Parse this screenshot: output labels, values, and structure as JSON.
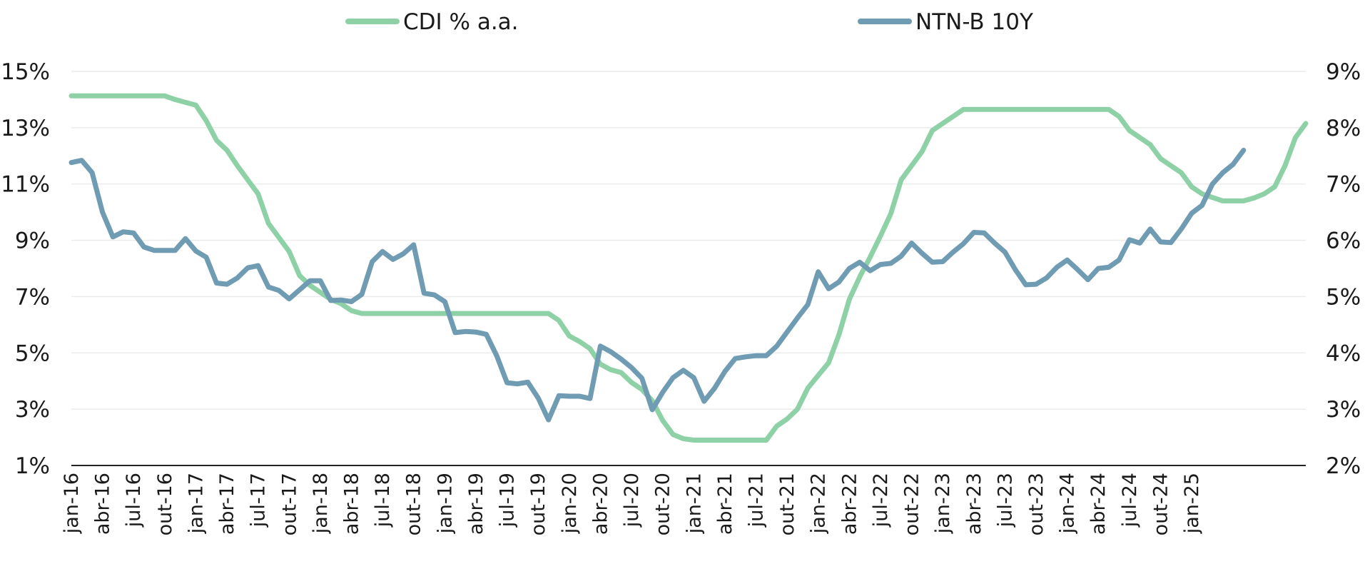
{
  "chart_data": {
    "type": "line",
    "title": "",
    "legend_position": "top",
    "grid": true,
    "colors": {
      "CDI": "#8fd1a6",
      "NTNB": "#6f9bb3"
    },
    "left_axis": {
      "ylim": [
        1,
        15
      ],
      "ticks": [
        "15%",
        "13%",
        "11%",
        "9%",
        "7%",
        "5%",
        "3%",
        "1%"
      ]
    },
    "right_axis": {
      "ylim": [
        2,
        9
      ],
      "ticks": [
        "9%",
        "8%",
        "7%",
        "6%",
        "5%",
        "4%",
        "3%",
        "2%"
      ]
    },
    "x_tick_labels": [
      "jan-16",
      "abr-16",
      "jul-16",
      "out-16",
      "jan-17",
      "abr-17",
      "jul-17",
      "out-17",
      "jan-18",
      "abr-18",
      "jul-18",
      "out-18",
      "jan-19",
      "abr-19",
      "jul-19",
      "out-19",
      "jan-20",
      "abr-20",
      "jul-20",
      "out-20",
      "jan-21",
      "abr-21",
      "jul-21",
      "out-21",
      "jan-22",
      "abr-22",
      "jul-22",
      "out-22",
      "jan-23",
      "abr-23",
      "jul-23",
      "out-23",
      "jan-24",
      "abr-24",
      "jul-24",
      "out-24",
      "jan-25"
    ],
    "x_tick_step_months": 3,
    "series": [
      {
        "name": "CDI % a.a.",
        "axis": "left",
        "color": "#8fd1a6",
        "values": [
          14.13,
          14.13,
          14.13,
          14.13,
          14.13,
          14.13,
          14.13,
          14.13,
          14.13,
          14.13,
          14.0,
          13.9,
          13.8,
          13.25,
          12.55,
          12.2,
          11.65,
          11.15,
          10.65,
          9.6,
          9.1,
          8.6,
          7.75,
          7.4,
          7.15,
          6.9,
          6.75,
          6.5,
          6.4,
          6.4,
          6.4,
          6.4,
          6.4,
          6.4,
          6.4,
          6.4,
          6.4,
          6.4,
          6.4,
          6.4,
          6.4,
          6.4,
          6.4,
          6.4,
          6.4,
          6.4,
          6.4,
          6.15,
          5.6,
          5.4,
          5.15,
          4.6,
          4.4,
          4.3,
          3.95,
          3.7,
          3.3,
          2.6,
          2.1,
          1.95,
          1.9,
          1.9,
          1.9,
          1.9,
          1.9,
          1.9,
          1.9,
          1.9,
          2.4,
          2.65,
          3.0,
          3.75,
          4.2,
          4.65,
          5.65,
          6.9,
          7.7,
          8.4,
          9.15,
          9.95,
          11.15,
          11.65,
          12.15,
          12.9,
          13.15,
          13.4,
          13.65,
          13.65,
          13.65,
          13.65,
          13.65,
          13.65,
          13.65,
          13.65,
          13.65,
          13.65,
          13.65,
          13.65,
          13.65,
          13.65,
          13.65,
          13.4,
          12.9,
          12.65,
          12.4,
          11.9,
          11.65,
          11.4,
          10.9,
          10.65,
          10.52,
          10.4,
          10.4,
          10.4,
          10.5,
          10.65,
          10.9,
          11.65,
          12.65,
          13.15
        ]
      },
      {
        "name": "NTN-B 10Y",
        "axis": "right",
        "color": "#6f9bb3",
        "values": [
          7.38,
          7.42,
          7.2,
          6.5,
          6.06,
          6.15,
          6.13,
          5.88,
          5.82,
          5.82,
          5.82,
          6.03,
          5.81,
          5.7,
          5.24,
          5.22,
          5.33,
          5.51,
          5.55,
          5.17,
          5.11,
          4.96,
          5.12,
          5.28,
          5.28,
          4.93,
          4.94,
          4.91,
          5.04,
          5.62,
          5.8,
          5.66,
          5.76,
          5.92,
          5.06,
          5.03,
          4.91,
          4.36,
          4.38,
          4.37,
          4.33,
          3.95,
          3.47,
          3.45,
          3.48,
          3.2,
          2.81,
          3.24,
          3.23,
          3.23,
          3.19,
          4.12,
          4.02,
          3.89,
          3.74,
          3.55,
          2.99,
          3.3,
          3.56,
          3.69,
          3.56,
          3.14,
          3.37,
          3.67,
          3.9,
          3.93,
          3.95,
          3.95,
          4.12,
          4.37,
          4.62,
          4.86,
          5.44,
          5.14,
          5.26,
          5.5,
          5.61,
          5.46,
          5.57,
          5.59,
          5.72,
          5.95,
          5.77,
          5.61,
          5.62,
          5.79,
          5.94,
          6.14,
          6.13,
          5.95,
          5.79,
          5.48,
          5.21,
          5.22,
          5.33,
          5.52,
          5.65,
          5.48,
          5.3,
          5.5,
          5.52,
          5.65,
          6.01,
          5.95,
          6.2,
          5.97,
          5.96,
          6.2,
          6.48,
          6.62,
          7.0,
          7.2,
          7.35,
          7.6
        ]
      }
    ]
  }
}
